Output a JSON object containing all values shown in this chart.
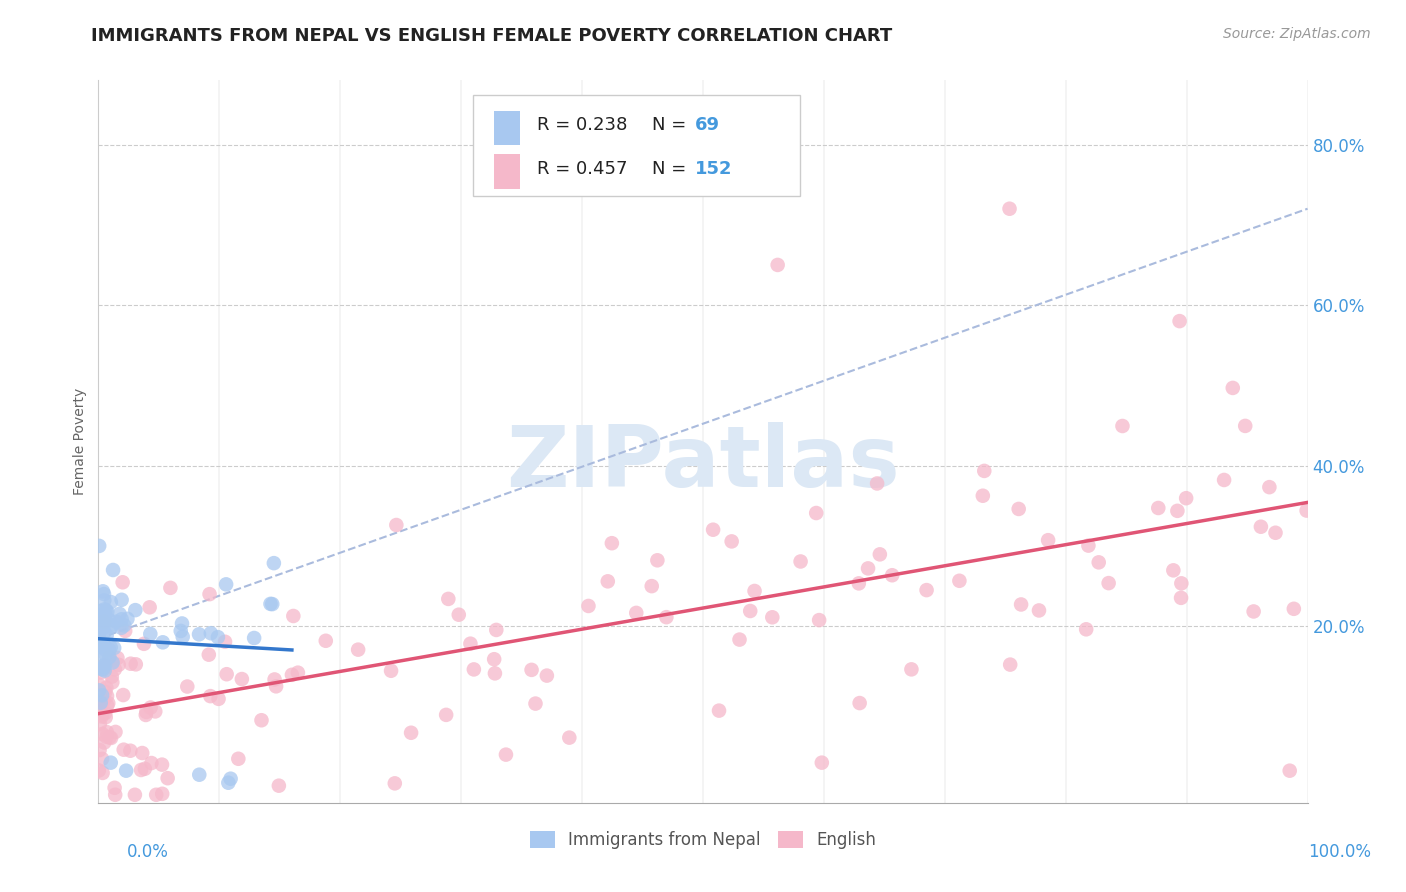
{
  "title": "IMMIGRANTS FROM NEPAL VS ENGLISH FEMALE POVERTY CORRELATION CHART",
  "source": "Source: ZipAtlas.com",
  "ylabel": "Female Poverty",
  "legend1_label": "Immigrants from Nepal",
  "legend2_label": "English",
  "blue_color": "#a8c8f0",
  "pink_color": "#f5b8ca",
  "blue_line_color": "#3377cc",
  "pink_line_color": "#e05575",
  "dashed_line_color": "#aabbdd",
  "watermark_text": "ZIPatlas",
  "background_color": "#ffffff",
  "grid_color": "#cccccc",
  "title_color": "#222222",
  "axis_label_color": "#4499dd",
  "xlim": [
    0.0,
    1.0
  ],
  "ylim": [
    -0.02,
    0.88
  ],
  "ytick_vals": [
    0.2,
    0.4,
    0.6,
    0.8
  ],
  "ytick_labels": [
    "20.0%",
    "40.0%",
    "60.0%",
    "80.0%"
  ]
}
